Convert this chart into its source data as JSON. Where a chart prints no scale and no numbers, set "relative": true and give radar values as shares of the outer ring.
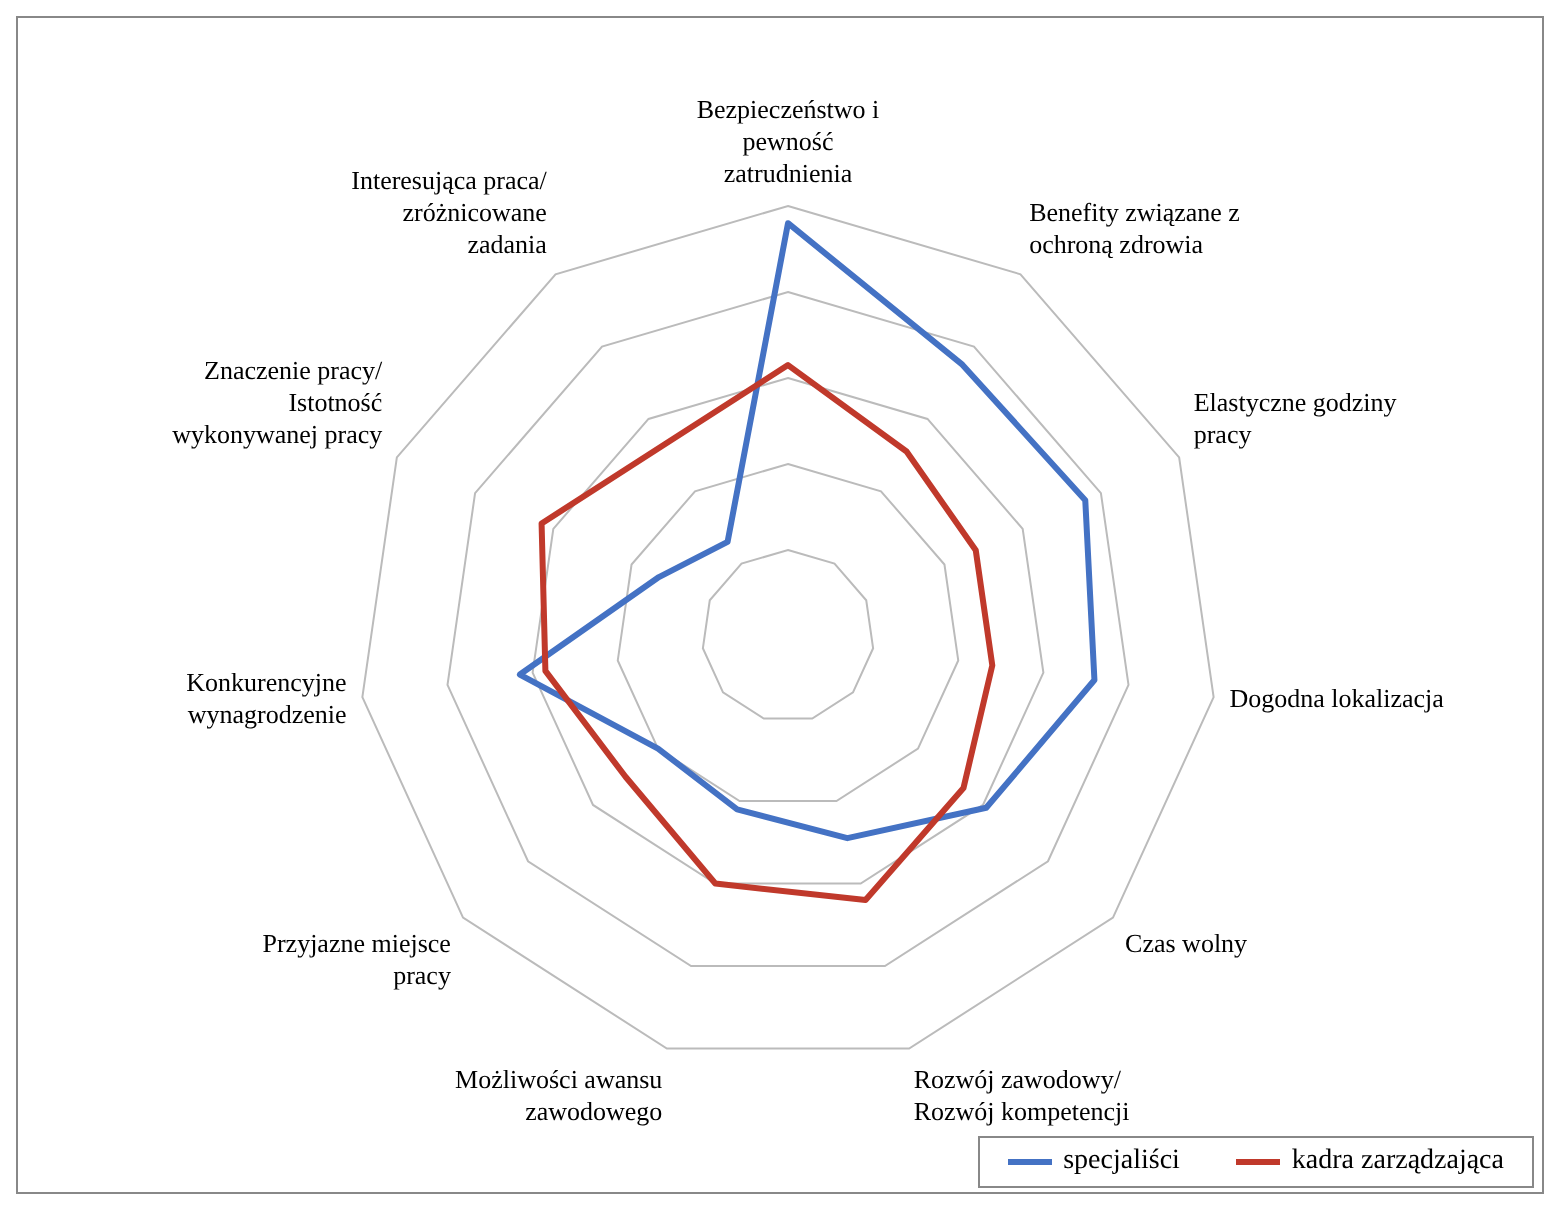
{
  "chart_data": {
    "type": "radar",
    "relative": true,
    "categories": [
      "Bezpieczeństwo i pewność zatrudnienia",
      "Benefity związane z ochroną zdrowia",
      "Elastyczne godziny pracy",
      "Dogodna lokalizacja",
      "Czas wolny",
      "Rozwój zawodowy/ Rozwój kompetencji",
      "Możliwości awansu zawodowego",
      "Przyjazne miejsce pracy",
      "Konkurencyjne wynagrodzenie",
      "Znaczenie pracy/ Istotność wykonywanej pracy",
      "Interesująca praca/ zróżnicowane zadania"
    ],
    "series": [
      {
        "name": "specjaliści",
        "color": "#4472c4",
        "values": [
          0.96,
          0.75,
          0.76,
          0.72,
          0.61,
          0.49,
          0.42,
          0.4,
          0.63,
          0.33,
          0.26
        ]
      },
      {
        "name": "kadra zarządzająca",
        "color": "#c0392b",
        "values": [
          0.63,
          0.51,
          0.48,
          0.48,
          0.54,
          0.64,
          0.6,
          0.5,
          0.57,
          0.63,
          0.53
        ]
      }
    ],
    "grid": true,
    "legend": "bottom right",
    "marker": "none"
  }
}
